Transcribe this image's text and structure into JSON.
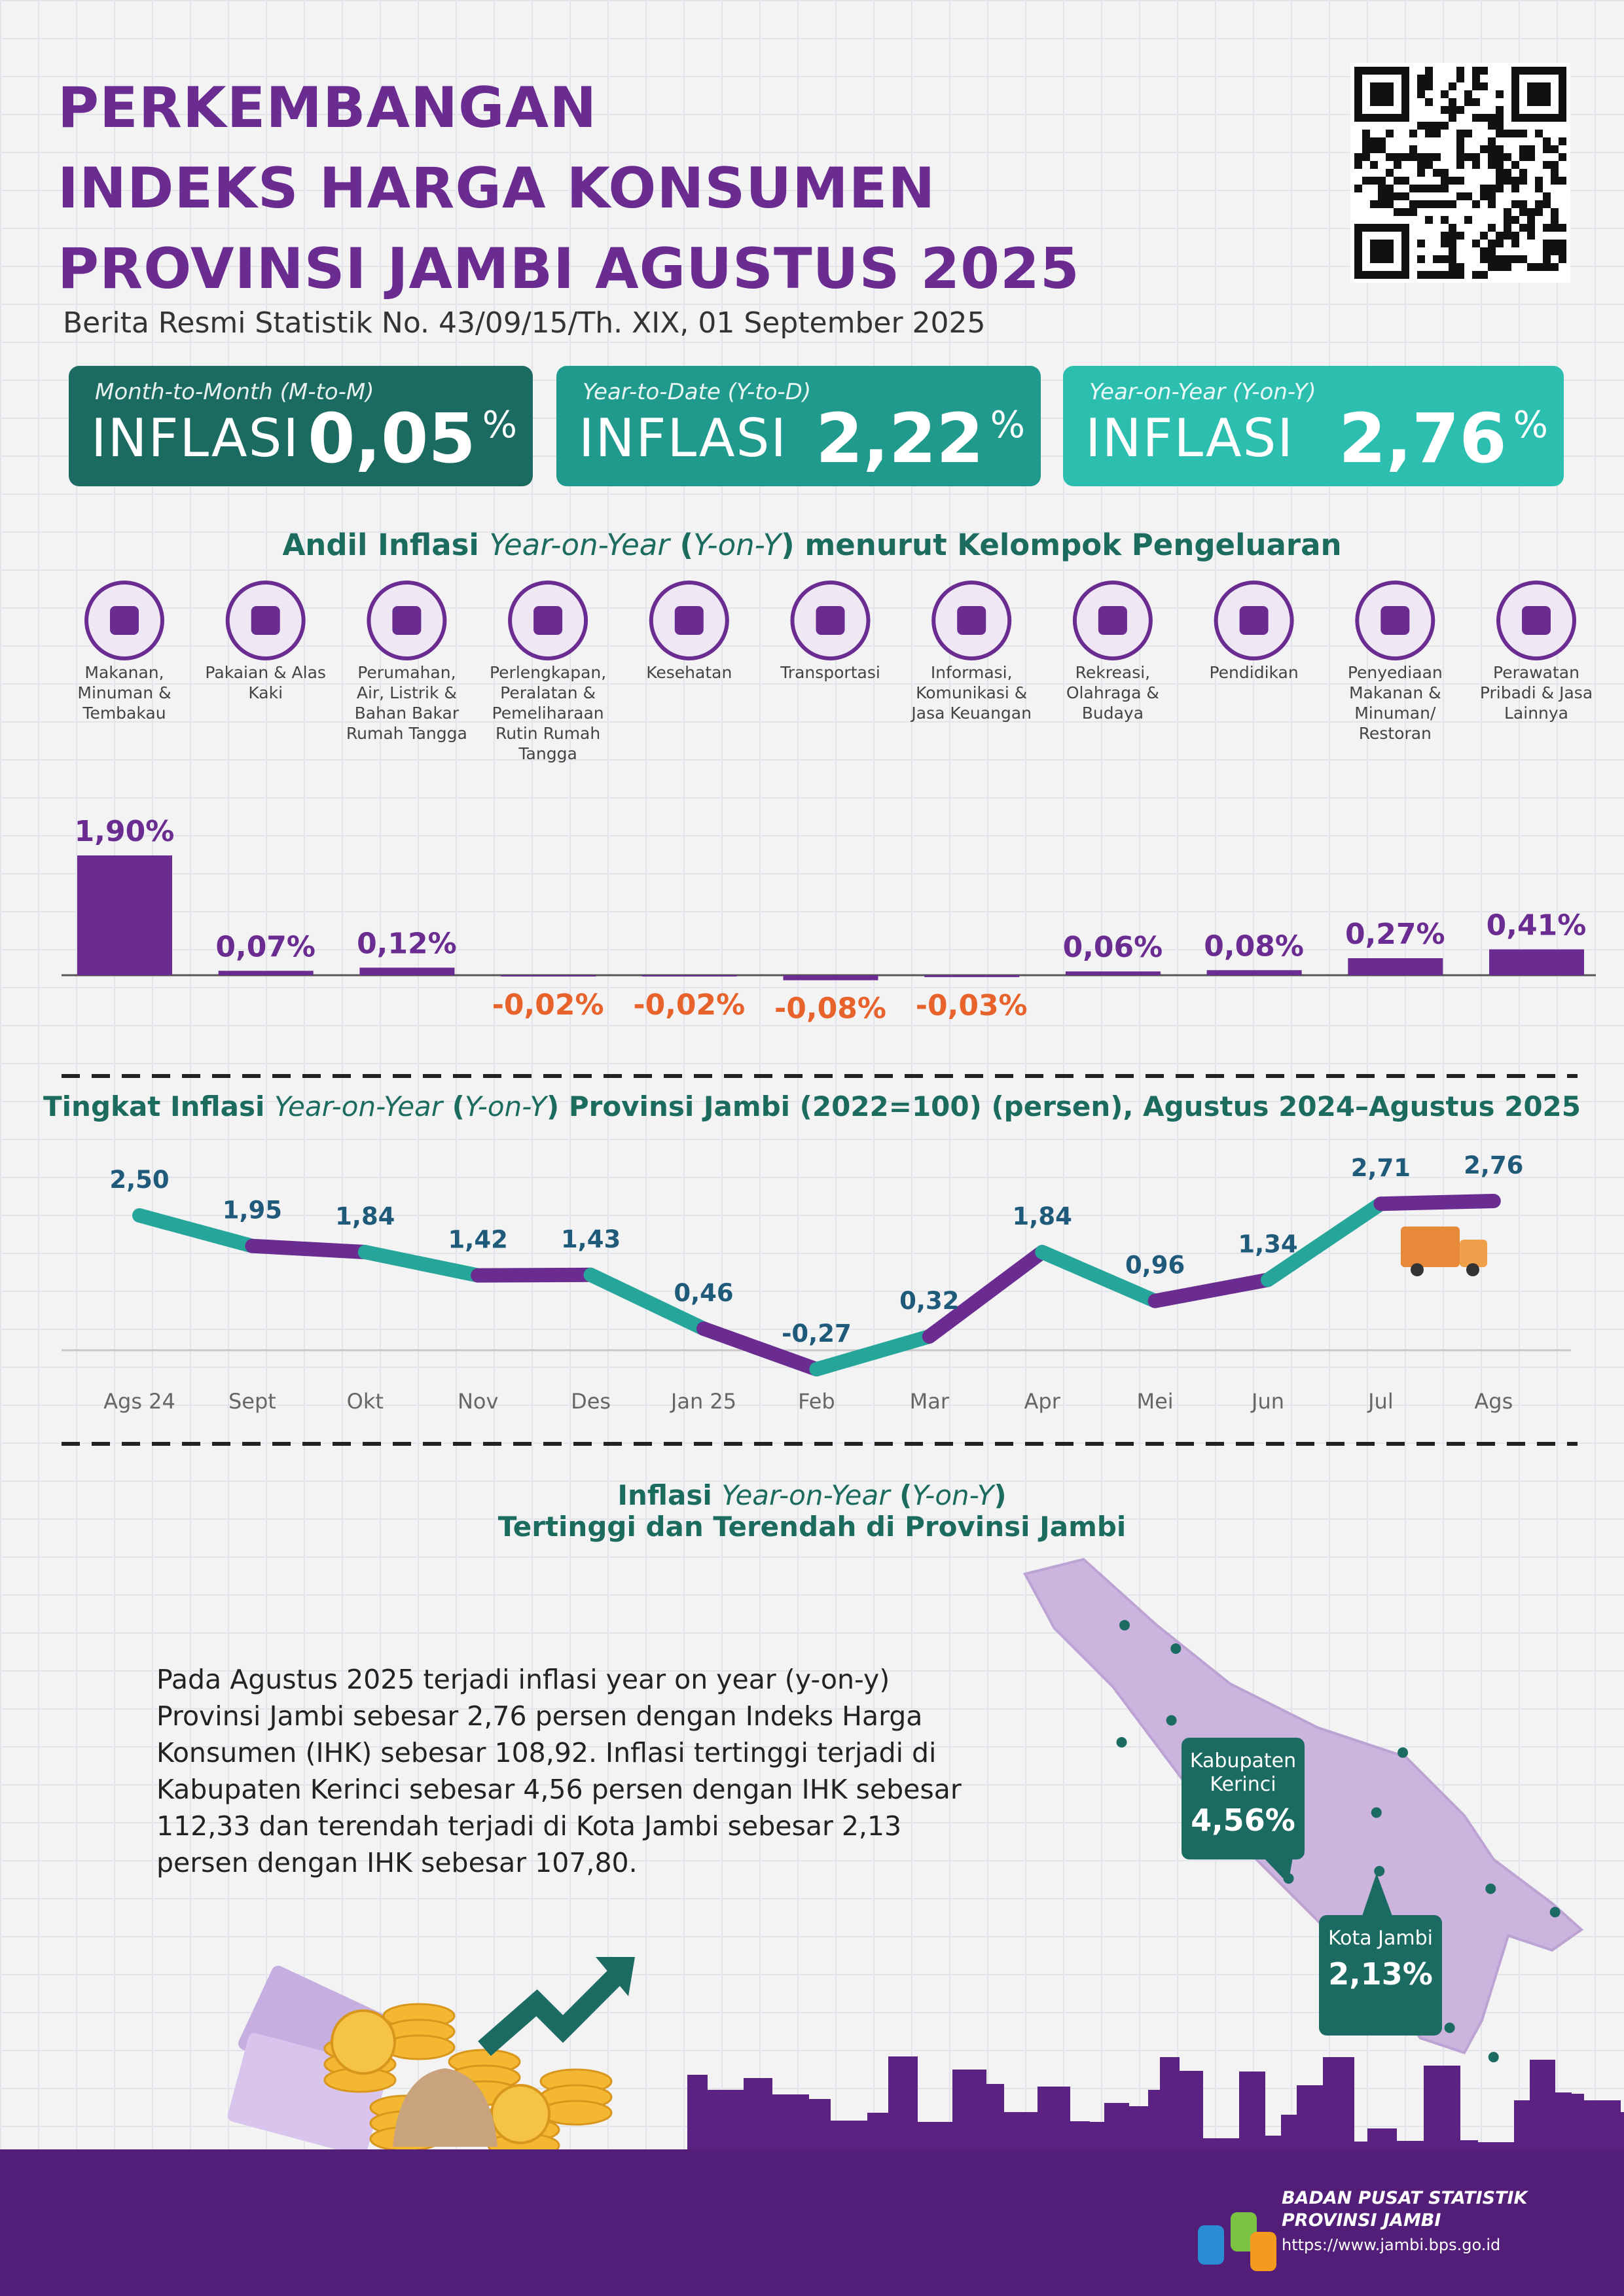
{
  "header": {
    "title_lines": [
      "PERKEMBANGAN",
      "INDEKS HARGA KONSUMEN",
      "PROVINSI JAMBI AGUSTUS 2025"
    ],
    "subtitle": "Berita Resmi Statistik No. 43/09/15/Th. XIX, 01 September 2025"
  },
  "cards": [
    {
      "period": "Month-to-Month (M-to-M)",
      "label": "INFLASI",
      "value": "0,05",
      "unit": "%",
      "color": "#1c6b62"
    },
    {
      "period": "Year-to-Date (Y-to-D)",
      "label": "INFLASI",
      "value": "2,22",
      "unit": "%",
      "color": "#1f9a8c"
    },
    {
      "period": "Year-on-Year (Y-on-Y)",
      "label": "INFLASI",
      "value": "2,76",
      "unit": "%",
      "color": "#2cbfb0"
    }
  ],
  "chart_data": [
    {
      "type": "bar",
      "title_parts": [
        "Andil Inflasi ",
        "Year-on-Year",
        " (",
        "Y-on-Y",
        ") menurut Kelompok Pengeluaran"
      ],
      "categories": [
        "Makanan, Minuman & Tembakau",
        "Pakaian & Alas Kaki",
        "Perumahan, Air, Listrik & Bahan Bakar Rumah Tangga",
        "Perlengkapan, Peralatan & Pemeliharaan Rutin Rumah Tangga",
        "Kesehatan",
        "Transportasi",
        "Informasi, Komunikasi & Jasa Keuangan",
        "Rekreasi, Olahraga & Budaya",
        "Pendidikan",
        "Penyediaan Makanan & Minuman/ Restoran",
        "Perawatan Pribadi & Jasa Lainnya"
      ],
      "values": [
        1.9,
        0.07,
        0.12,
        -0.02,
        -0.02,
        -0.08,
        -0.03,
        0.06,
        0.08,
        0.27,
        0.41
      ],
      "value_labels": [
        "1,90%",
        "0,07%",
        "0,12%",
        "-0,02%",
        "-0,02%",
        "-0,08%",
        "-0,03%",
        "0,06%",
        "0,08%",
        "0,27%",
        "0,41%"
      ],
      "color": "#6a2c91",
      "negative_label_color": "#e8622c"
    },
    {
      "type": "line",
      "title_parts": [
        "Tingkat Inflasi ",
        "Year-on-Year",
        " (",
        "Y-on-Y",
        ") Provinsi Jambi (2022=100) (persen), Agustus 2024–Agustus 2025"
      ],
      "categories": [
        "Ags 24",
        "Sept",
        "Okt",
        "Nov",
        "Des",
        "Jan 25",
        "Feb",
        "Mar",
        "Apr",
        "Mei",
        "Jun",
        "Jul",
        "Ags"
      ],
      "values": [
        2.5,
        1.95,
        1.84,
        1.42,
        1.43,
        0.46,
        -0.27,
        0.32,
        1.84,
        0.96,
        1.34,
        2.71,
        2.76
      ],
      "value_labels": [
        "2,50",
        "1,95",
        "1,84",
        "1,42",
        "1,43",
        "0,46",
        "-0,27",
        "0,32",
        "1,84",
        "0,96",
        "1,34",
        "2,71",
        "2,76"
      ],
      "colors": [
        "#26a69a",
        "#6a2c91"
      ]
    }
  ],
  "map_section": {
    "title_parts": [
      "Inflasi ",
      "Year-on-Year",
      " (",
      "Y-on-Y",
      ")"
    ],
    "subtitle": "Tertinggi dan Terendah di Provinsi Jambi",
    "paragraph": "Pada Agustus 2025 terjadi inflasi year on year (y-on-y) Provinsi Jambi sebesar 2,76 persen dengan Indeks Harga Konsumen (IHK) sebesar 108,92. Inflasi tertinggi terjadi di Kabupaten Kerinci sebesar 4,56 persen dengan IHK sebesar 112,33 dan terendah terjadi di Kota Jambi sebesar 2,13 persen dengan IHK sebesar 107,80.",
    "callouts": [
      {
        "name": "Kabupaten Kerinci",
        "value": "4,56%"
      },
      {
        "name": "Kota Jambi",
        "value": "2,13%"
      }
    ]
  },
  "footer": {
    "org_lines": [
      "BADAN PUSAT STATISTIK",
      "PROVINSI JAMBI"
    ],
    "url": "https://www.jambi.bps.go.id"
  }
}
